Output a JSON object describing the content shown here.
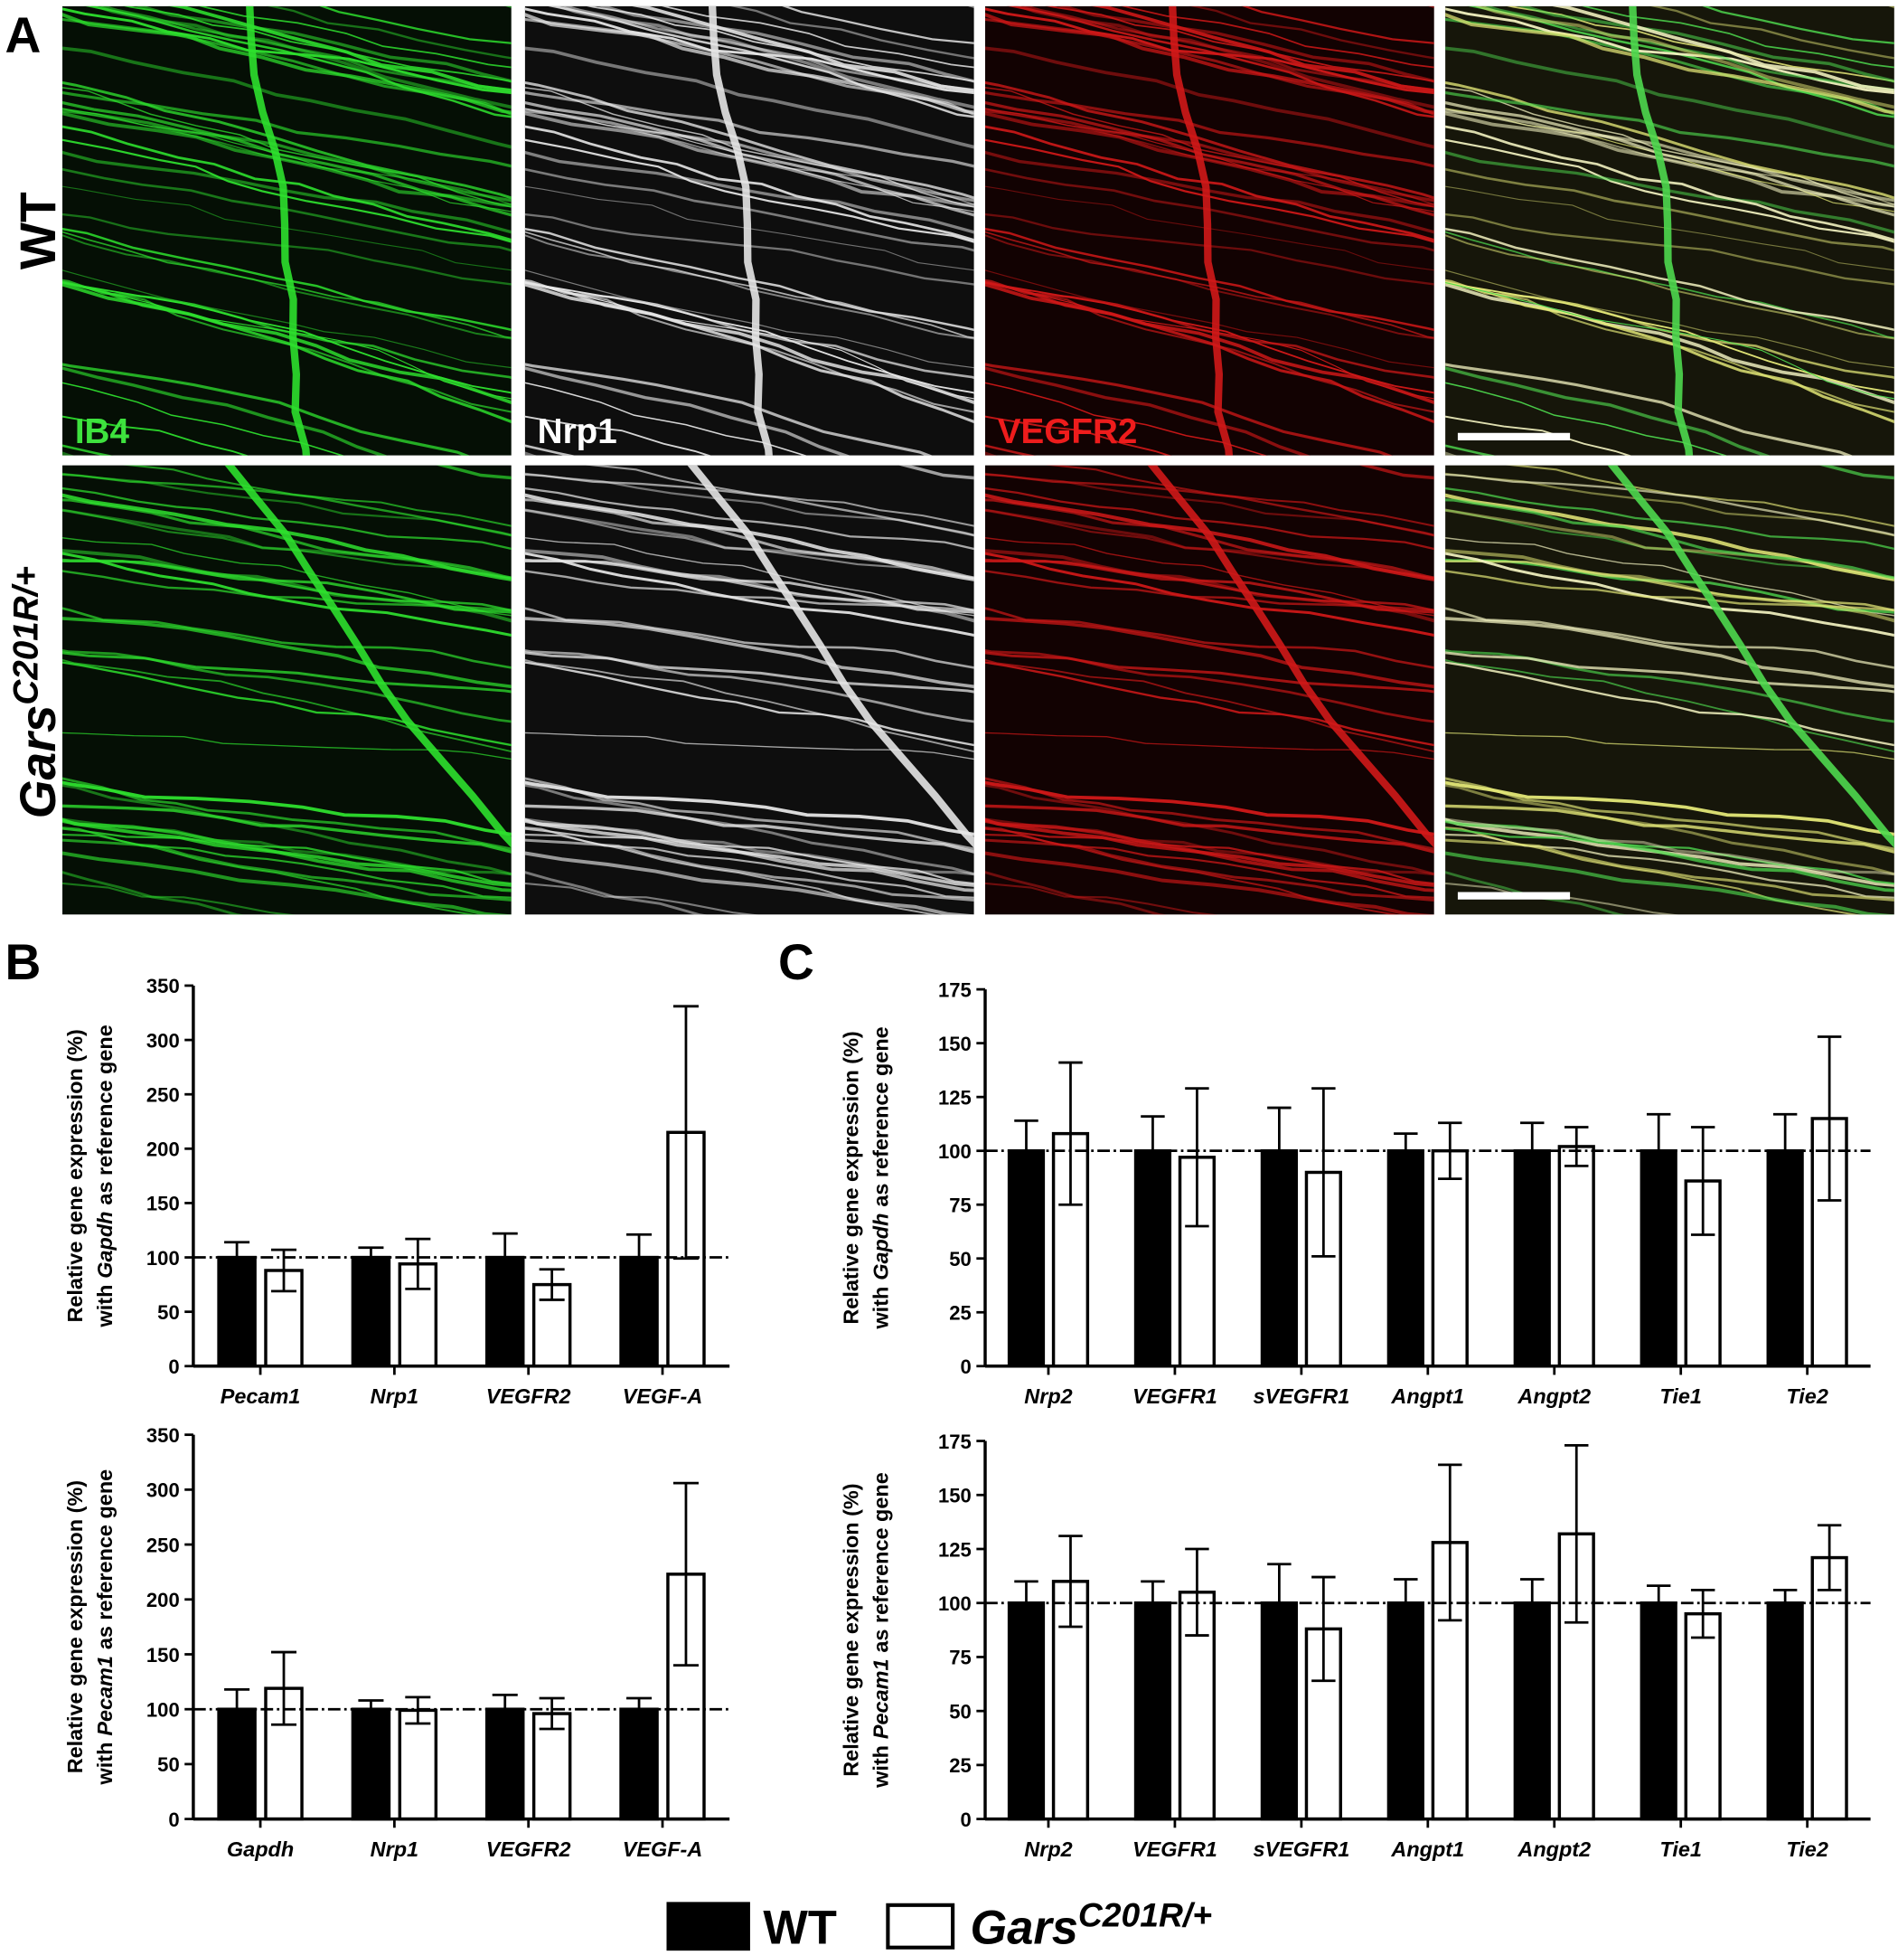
{
  "figure": {
    "panel_labels": [
      "A",
      "B",
      "C"
    ],
    "row_labels": [
      {
        "text": "WT"
      },
      {
        "text": "Gars",
        "sup": "C201R/+"
      }
    ],
    "channel_labels": [
      "IB4",
      "Nrp1",
      "VEGFR2"
    ]
  },
  "chart_data": [
    {
      "type": "bar",
      "ylabel": {
        "line1": "Relative gene expression (%)",
        "pre": "with",
        "gene": "Gapdh",
        "post": "as reference gene"
      },
      "categories": [
        "Pecam1",
        "Nrp1",
        "VEGFR2",
        "VEGF-A"
      ],
      "series": [
        {
          "name": "WT",
          "color": "#000000",
          "values": [
            100,
            100,
            100,
            100
          ],
          "errors": [
            14,
            9,
            22,
            21
          ]
        },
        {
          "name": "Gars",
          "name_sup": "C201R/+",
          "color": "#ffffff",
          "values": [
            88,
            94,
            75,
            215
          ],
          "errors": [
            19,
            23,
            14,
            116
          ]
        }
      ],
      "ylim": [
        0,
        350
      ],
      "yticks": [
        0,
        50,
        100,
        150,
        200,
        250,
        300,
        350
      ],
      "reference_line": 100
    },
    {
      "type": "bar",
      "ylabel": {
        "line1": "Relative gene expression (%)",
        "pre": "with",
        "gene": "Pecam1",
        "post": "as reference gene"
      },
      "categories": [
        "Gapdh",
        "Nrp1",
        "VEGFR2",
        "VEGF-A"
      ],
      "series": [
        {
          "color": "#000000",
          "values": [
            100,
            100,
            100,
            100
          ],
          "errors": [
            18,
            8,
            13,
            10
          ]
        },
        {
          "color": "#ffffff",
          "values": [
            119,
            99,
            96,
            223
          ],
          "errors": [
            33,
            12,
            14,
            83
          ]
        }
      ],
      "ylim": [
        0,
        350
      ],
      "yticks": [
        0,
        50,
        100,
        150,
        200,
        250,
        300,
        350
      ],
      "reference_line": 100
    },
    {
      "type": "bar",
      "ylabel": {
        "line1": "Relative gene expression (%)",
        "pre": "with",
        "gene": "Gapdh",
        "post": "as reference gene"
      },
      "categories": [
        "Nrp2",
        "VEGFR1",
        "sVEGFR1",
        "Angpt1",
        "Angpt2",
        "Tie1",
        "Tie2"
      ],
      "series": [
        {
          "color": "#000000",
          "values": [
            100,
            100,
            100,
            100,
            100,
            100,
            100
          ],
          "errors": [
            14,
            16,
            20,
            8,
            13,
            17,
            17
          ]
        },
        {
          "color": "#ffffff",
          "values": [
            108,
            97,
            90,
            100,
            102,
            86,
            115
          ],
          "errors": [
            33,
            32,
            39,
            13,
            9,
            25,
            38
          ]
        }
      ],
      "ylim": [
        0,
        175
      ],
      "yticks": [
        0,
        25,
        50,
        75,
        100,
        125,
        150,
        175
      ],
      "reference_line": 100
    },
    {
      "type": "bar",
      "ylabel": {
        "line1": "Relative gene expression (%)",
        "pre": "with",
        "gene": "Pecam1",
        "post": "as reference gene"
      },
      "categories": [
        "Nrp2",
        "VEGFR1",
        "sVEGFR1",
        "Angpt1",
        "Angpt2",
        "Tie1",
        "Tie2"
      ],
      "series": [
        {
          "color": "#000000",
          "values": [
            100,
            100,
            100,
            100,
            100,
            100,
            100
          ],
          "errors": [
            10,
            10,
            18,
            11,
            11,
            8,
            6
          ]
        },
        {
          "color": "#ffffff",
          "values": [
            110,
            105,
            88,
            128,
            132,
            95,
            121
          ],
          "errors": [
            21,
            20,
            24,
            36,
            41,
            11,
            15
          ]
        }
      ],
      "ylim": [
        0,
        175
      ],
      "yticks": [
        0,
        25,
        50,
        75,
        100,
        125,
        150,
        175
      ],
      "reference_line": 100
    }
  ]
}
